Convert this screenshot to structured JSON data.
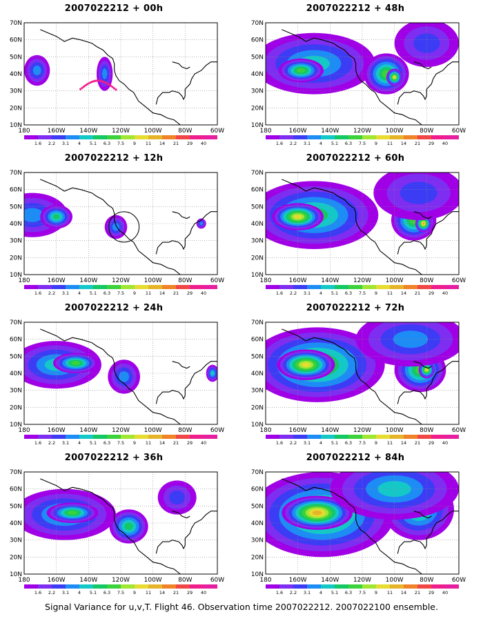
{
  "panels": [
    {
      "title": "2007022212 + 00h",
      "field_level": 0
    },
    {
      "title": "2007022212 + 48h",
      "field_level": 4
    },
    {
      "title": "2007022212 + 12h",
      "field_level": 1
    },
    {
      "title": "2007022212 + 60h",
      "field_level": 5
    },
    {
      "title": "2007022212 + 24h",
      "field_level": 2
    },
    {
      "title": "2007022212 + 72h",
      "field_level": 6
    },
    {
      "title": "2007022212 + 36h",
      "field_level": 3
    },
    {
      "title": "2007022212 + 84h",
      "field_level": 7
    }
  ],
  "axes": {
    "lat_labels": [
      "70N",
      "60N",
      "50N",
      "40N",
      "30N",
      "20N",
      "10N"
    ],
    "lon_labels": [
      "180",
      "160W",
      "140W",
      "120W",
      "100W",
      "80W",
      "60W"
    ]
  },
  "colorbar": {
    "labels": [
      "1.6",
      "2.2",
      "3.1",
      "4",
      "5.1",
      "6.3",
      "7.5",
      "9",
      "11",
      "14",
      "21",
      "29",
      "40"
    ],
    "colors": [
      "#a000e6",
      "#7e2ef0",
      "#3c3cf5",
      "#1e8cf5",
      "#14c8c8",
      "#14c864",
      "#3cd23c",
      "#a0e632",
      "#e6dc32",
      "#e6b428",
      "#f08228",
      "#f04646",
      "#f01e8c",
      "#e61ea0"
    ]
  },
  "caption": "Signal Variance for u,v,T. Flight 46. Observation time 2007022212. 2007022100 ensemble."
}
